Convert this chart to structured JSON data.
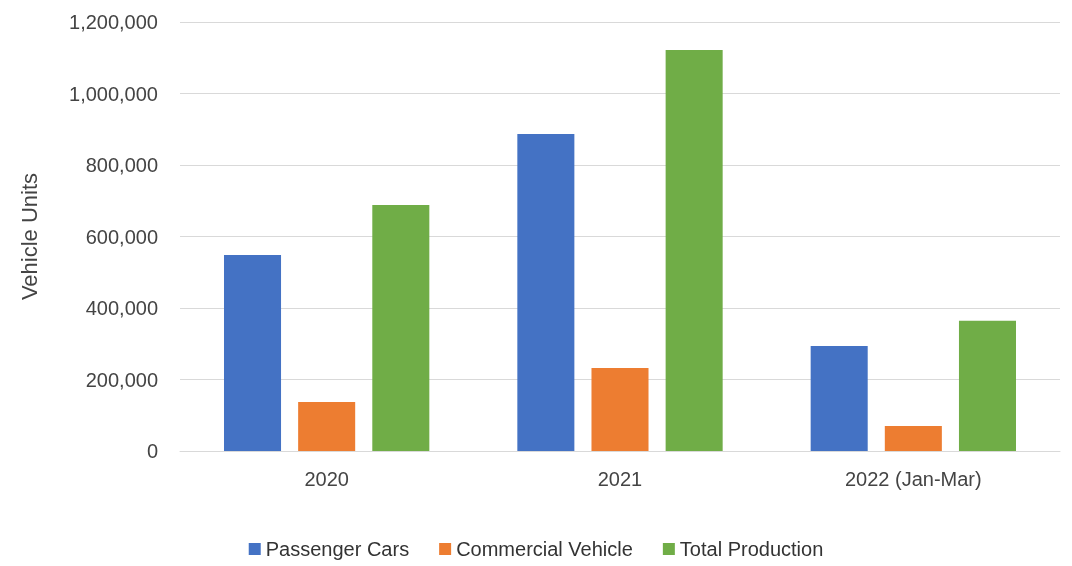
{
  "chart_data": {
    "type": "bar",
    "ylabel": "Vehicle Units",
    "categories": [
      "2020",
      "2021",
      "2022 (Jan-Mar)"
    ],
    "series": [
      {
        "name": "Passenger Cars",
        "color": "#4472c4",
        "values": [
          548000,
          887000,
          294000
        ]
      },
      {
        "name": "Commercial Vehicle",
        "color": "#ed7d31",
        "values": [
          137000,
          232000,
          70000
        ]
      },
      {
        "name": "Total Production",
        "color": "#70ad47",
        "values": [
          688000,
          1122000,
          364000
        ]
      }
    ],
    "ylim": [
      0,
      1200000
    ],
    "yticks": [
      {
        "value": 0,
        "label": "0"
      },
      {
        "value": 200000,
        "label": "200,000"
      },
      {
        "value": 400000,
        "label": "400,000"
      },
      {
        "value": 600000,
        "label": "600,000"
      },
      {
        "value": 800000,
        "label": "800,000"
      },
      {
        "value": 1000000,
        "label": "1,000,000"
      },
      {
        "value": 1200000,
        "label": "1,200,000"
      }
    ],
    "grid": "y",
    "legend": "bottom"
  }
}
